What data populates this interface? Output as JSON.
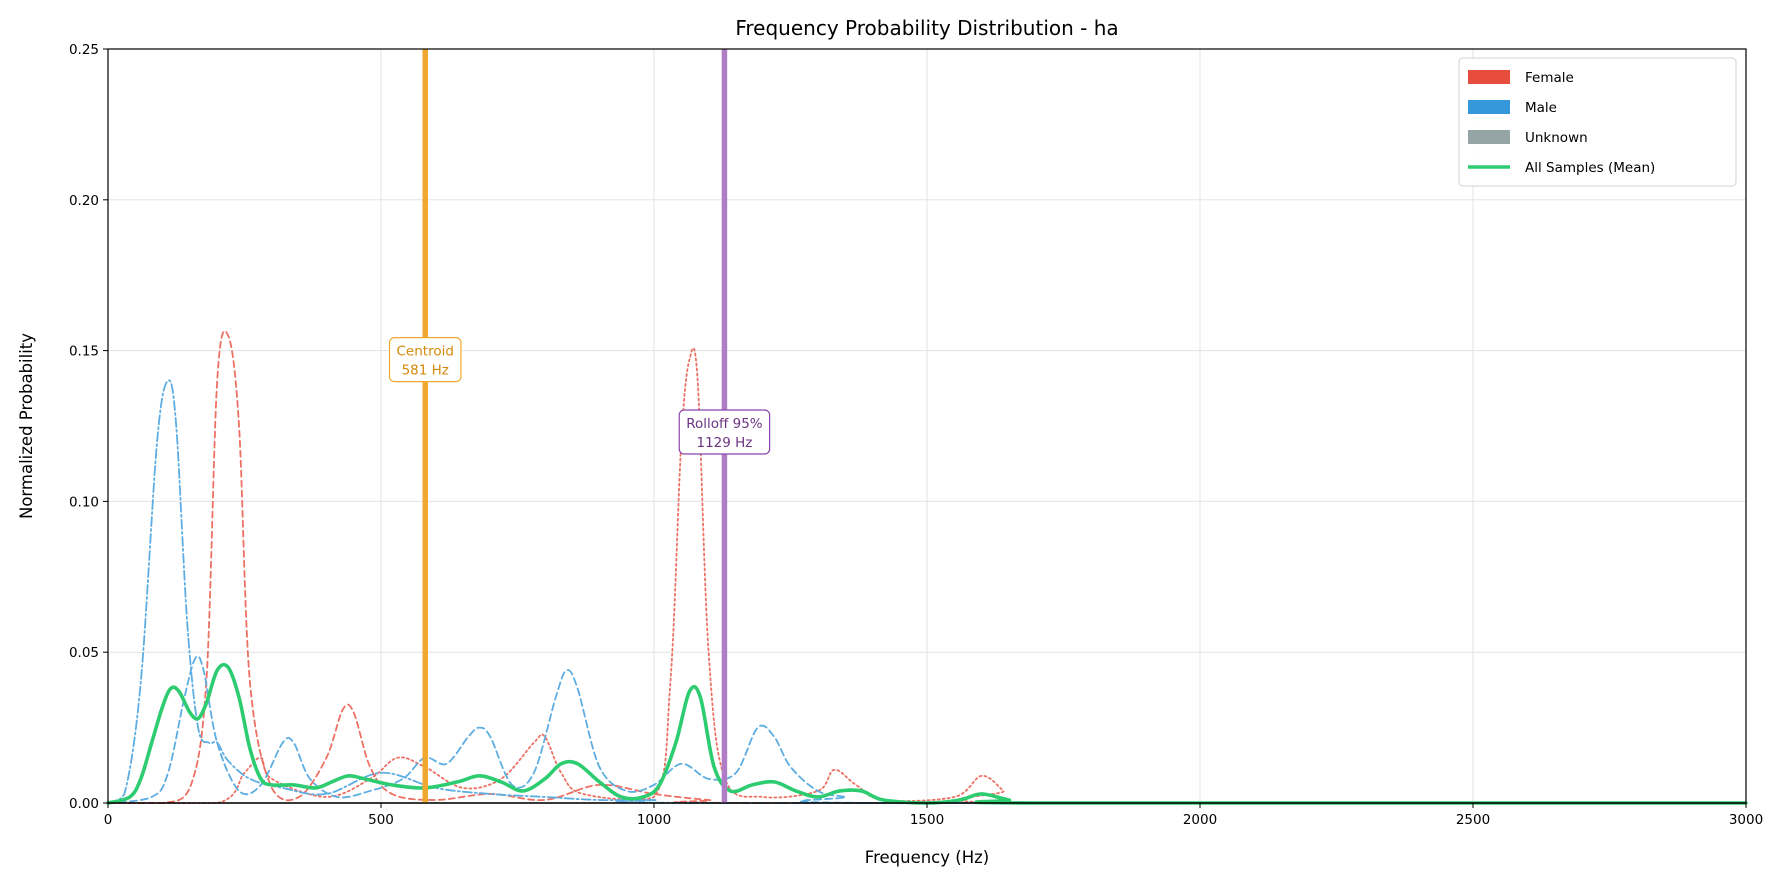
{
  "chart_data": {
    "type": "line",
    "title": "Frequency Probability Distribution - ha",
    "xlabel": "Frequency (Hz)",
    "ylabel": "Normalized Probability",
    "xlim": [
      0,
      3000
    ],
    "ylim": [
      0,
      0.25
    ],
    "xticks": [
      0,
      500,
      1000,
      1500,
      2000,
      2500,
      3000
    ],
    "xtick_labels": [
      "0",
      "500",
      "1000",
      "1500",
      "2000",
      "2500",
      "3000"
    ],
    "yticks": [
      0,
      0.05,
      0.1,
      0.15,
      0.2,
      0.25
    ],
    "ytick_labels": [
      "0.00",
      "0.05",
      "0.10",
      "0.15",
      "0.20",
      "0.25"
    ],
    "grid": true,
    "legend_position": "top-right",
    "legend": [
      {
        "label": "Female",
        "kind": "patch",
        "color": "#e74c3c"
      },
      {
        "label": "Male",
        "kind": "patch",
        "color": "#3498db"
      },
      {
        "label": "Unknown",
        "kind": "patch",
        "color": "#95a5a6"
      },
      {
        "label": "All Samples (Mean)",
        "kind": "line",
        "color": "#2ecc71"
      }
    ],
    "series": [
      {
        "group": "Female",
        "color": "#ec7063",
        "dash": "6,4",
        "width": 1.8,
        "x": [
          0,
          100,
          150,
          180,
          200,
          220,
          240,
          260,
          300,
          350,
          400,
          430,
          450,
          480,
          520,
          600,
          700,
          800,
          900,
          1000,
          1100,
          1200,
          3000
        ],
        "y": [
          0,
          0,
          0.005,
          0.04,
          0.14,
          0.155,
          0.125,
          0.04,
          0.005,
          0.002,
          0.015,
          0.031,
          0.03,
          0.012,
          0.003,
          0.001,
          0.003,
          0.001,
          0.006,
          0.003,
          0.001,
          0,
          0
        ]
      },
      {
        "group": "Female",
        "color": "#ec7063",
        "dash": "2,3",
        "width": 1.8,
        "x": [
          0,
          200,
          250,
          280,
          300,
          400,
          480,
          530,
          580,
          650,
          720,
          780,
          800,
          830,
          870,
          1000,
          1030,
          1050,
          1065,
          1080,
          1100,
          1130,
          1200,
          1300,
          1330,
          1370,
          1420,
          1550,
          1600,
          1640,
          1660,
          3000
        ],
        "y": [
          0,
          0,
          0.01,
          0.015,
          0.008,
          0.002,
          0.008,
          0.015,
          0.012,
          0.005,
          0.008,
          0.02,
          0.022,
          0.01,
          0.003,
          0.002,
          0.04,
          0.12,
          0.147,
          0.14,
          0.05,
          0.008,
          0.002,
          0.004,
          0.011,
          0.006,
          0.001,
          0.002,
          0.009,
          0.004,
          0,
          0
        ]
      },
      {
        "group": "Male",
        "color": "#5dade2",
        "dash": "9,3,2,3",
        "width": 1.8,
        "x": [
          0,
          30,
          60,
          90,
          110,
          125,
          145,
          165,
          185,
          200,
          220,
          260,
          320,
          400,
          500,
          600,
          700,
          800,
          900,
          1000,
          1100,
          3000
        ],
        "y": [
          0,
          0.003,
          0.04,
          0.12,
          0.14,
          0.125,
          0.06,
          0.025,
          0.02,
          0.02,
          0.014,
          0.008,
          0.005,
          0.003,
          0.01,
          0.005,
          0.003,
          0.002,
          0.001,
          0.001,
          0,
          0
        ]
      },
      {
        "group": "Male",
        "color": "#5dade2",
        "dash": "7,4",
        "width": 1.8,
        "x": [
          0,
          80,
          110,
          140,
          160,
          175,
          200,
          240,
          280,
          320,
          340,
          370,
          420,
          480,
          540,
          580,
          620,
          660,
          680,
          700,
          740,
          780,
          820,
          840,
          860,
          900,
          950,
          1000,
          1050,
          1100,
          1150,
          1190,
          1220,
          1250,
          1300,
          1350,
          1400,
          3000
        ],
        "y": [
          0,
          0.002,
          0.01,
          0.035,
          0.048,
          0.044,
          0.02,
          0.004,
          0.006,
          0.02,
          0.02,
          0.008,
          0.002,
          0.004,
          0.008,
          0.015,
          0.013,
          0.022,
          0.025,
          0.022,
          0.006,
          0.01,
          0.035,
          0.044,
          0.038,
          0.012,
          0.004,
          0.006,
          0.013,
          0.008,
          0.01,
          0.025,
          0.022,
          0.012,
          0.004,
          0.002,
          0,
          0
        ]
      },
      {
        "group": "All Samples (Mean)",
        "color": "#2ecc71",
        "dash": "",
        "width": 3.6,
        "x": [
          0,
          40,
          60,
          80,
          100,
          115,
          130,
          150,
          165,
          180,
          200,
          220,
          240,
          260,
          280,
          300,
          340,
          380,
          410,
          440,
          470,
          520,
          580,
          640,
          680,
          720,
          760,
          800,
          830,
          860,
          900,
          940,
          980,
          1010,
          1040,
          1065,
          1085,
          1110,
          1140,
          1180,
          1220,
          1260,
          1300,
          1340,
          1380,
          1420,
          1500,
          1560,
          1600,
          1650,
          1700,
          3000
        ],
        "y": [
          0,
          0.002,
          0.008,
          0.02,
          0.032,
          0.038,
          0.037,
          0.03,
          0.028,
          0.033,
          0.044,
          0.045,
          0.035,
          0.018,
          0.008,
          0.006,
          0.006,
          0.005,
          0.007,
          0.009,
          0.008,
          0.006,
          0.005,
          0.007,
          0.009,
          0.007,
          0.004,
          0.008,
          0.013,
          0.013,
          0.007,
          0.002,
          0.002,
          0.006,
          0.02,
          0.037,
          0.035,
          0.012,
          0.004,
          0.006,
          0.007,
          0.004,
          0.002,
          0.004,
          0.004,
          0.001,
          0,
          0.001,
          0.003,
          0.001,
          0,
          0
        ]
      }
    ],
    "vertical_lines": [
      {
        "name": "centroid",
        "x": 581,
        "color": "#f0a830",
        "label_line1": "Centroid",
        "label_line2": "581 Hz",
        "label_y": 0.147,
        "text_color": "#d4890a",
        "box_edge": "#f0a830"
      },
      {
        "name": "rolloff",
        "x": 1129,
        "color": "#b07cc6",
        "label_line1": "Rolloff 95%",
        "label_line2": "1129 Hz",
        "label_y": 0.123,
        "text_color": "#6c3483",
        "box_edge": "#8e44ad"
      }
    ]
  }
}
